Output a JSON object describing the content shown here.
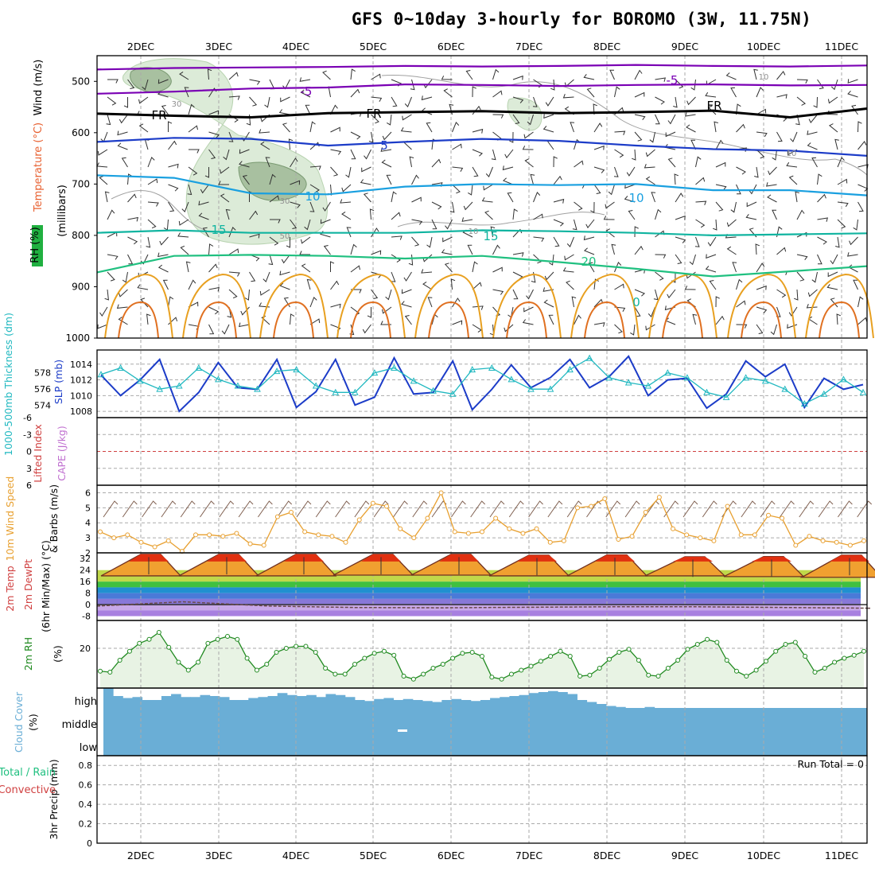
{
  "title": "GFS 0~10day 3-hourly for BOROMO (3W, 11.75N)",
  "colors": {
    "frame": "#000000",
    "grid": "#aaaaaa",
    "purple": "#7a00b4",
    "blue": "#1c3cc8",
    "lightblue": "#1aa0e0",
    "teal": "#10b4a0",
    "green": "#20c080",
    "orange": "#e8a020",
    "darkorange": "#e07020",
    "slp": "#1c3cc8",
    "thickness": "#20b8c0",
    "wind10m": "#e8a030",
    "rh2m": "#208a20",
    "rh2mfill": "#e8f3e4",
    "cloud": "#6aaed6",
    "cape_lifted": "#d04040",
    "cape_label": "#c070d0"
  },
  "chart_data": [
    {
      "panel": "upper-air",
      "type": "line",
      "x": [
        "2DEC",
        "3DEC",
        "4DEC",
        "5DEC",
        "6DEC",
        "7DEC",
        "8DEC",
        "9DEC",
        "10DEC",
        "11DEC"
      ],
      "ylabel": [
        "Wind (m/s)",
        "Temperature (°C)",
        "RH (%)",
        "(millibars)"
      ],
      "y_ticks": [
        "500",
        "600",
        "700",
        "800",
        "900",
        "1000"
      ],
      "ylim": [
        1000,
        445
      ],
      "series": [
        {
          "name": "-10",
          "color": "purple",
          "pressure": [
            477,
            474,
            473,
            472,
            470,
            471,
            470,
            468,
            470,
            471,
            469
          ]
        },
        {
          "name": "-5",
          "color": "purple",
          "pressure": [
            524,
            520,
            514,
            512,
            506,
            507,
            509,
            507,
            506,
            508,
            507
          ]
        },
        {
          "name": "FR",
          "color": "black",
          "pressure": [
            563,
            567,
            570,
            562,
            560,
            558,
            562,
            560,
            557,
            570,
            553
          ]
        },
        {
          "name": "5",
          "color": "blue",
          "pressure": [
            618,
            610,
            612,
            625,
            618,
            612,
            616,
            625,
            632,
            635,
            645
          ]
        },
        {
          "name": "10",
          "color": "lightblue",
          "pressure": [
            683,
            688,
            718,
            720,
            705,
            700,
            702,
            700,
            712,
            712,
            722
          ]
        },
        {
          "name": "15",
          "color": "teal",
          "pressure": [
            795,
            790,
            795,
            795,
            795,
            790,
            792,
            795,
            800,
            798,
            796
          ]
        },
        {
          "name": "20",
          "color": "green",
          "pressure": [
            872,
            840,
            838,
            840,
            845,
            840,
            852,
            865,
            880,
            870,
            860
          ]
        }
      ],
      "labels": [
        "-5",
        "-5",
        "FR",
        "FR",
        "FR",
        "5",
        "10",
        "10",
        "15",
        "15",
        "20",
        "0",
        "10",
        "10",
        "10",
        "30",
        "30",
        "50",
        "30"
      ]
    },
    {
      "panel": "slp-thickness",
      "type": "line",
      "ylabel_left": "1000-500mb Thickness (dm)",
      "ylabel_right": "SLP (mb)",
      "thickness_ticks": [
        "578",
        "576",
        "574"
      ],
      "slp_ticks": [
        "1014",
        "1012",
        "1010",
        "1008"
      ],
      "slp": [
        1012.6,
        1010.0,
        1012.0,
        1014.6,
        1008.0,
        1010.4,
        1014.2,
        1011.0,
        1010.8,
        1014.6,
        1008.5,
        1010.5,
        1014.6,
        1008.8,
        1009.8,
        1014.8,
        1010.2,
        1010.4,
        1014.4,
        1008.2,
        1010.8,
        1013.9,
        1011.0,
        1012.3,
        1014.6,
        1011.0,
        1012.4,
        1015.0,
        1010.0,
        1012.0,
        1012.2,
        1008.4,
        1010.2,
        1014.4,
        1012.4,
        1014.0,
        1008.5,
        1012.2,
        1010.8,
        1011.4
      ],
      "thickness": [
        577.8,
        578.6,
        577.0,
        576.0,
        576.4,
        578.6,
        577.2,
        576.4,
        576.0,
        578.2,
        578.4,
        576.4,
        575.6,
        575.6,
        578.0,
        578.6,
        577.0,
        575.8,
        575.4,
        578.4,
        578.6,
        577.2,
        576.0,
        576.0,
        578.4,
        579.8,
        577.4,
        576.8,
        576.4,
        578.0,
        577.4,
        575.6,
        575.0,
        577.4,
        577.0,
        576.0,
        574.2,
        575.4,
        577.2,
        575.6
      ]
    },
    {
      "panel": "cape-li",
      "type": "line",
      "ylabel": [
        "Lifted Index",
        "CAPE (J/kg)"
      ],
      "y_ticks": [
        "-6",
        "-3",
        "0",
        "3",
        "6"
      ],
      "ylim": [
        6,
        -6
      ],
      "lifted_index_zero_line": 0
    },
    {
      "panel": "wind10m",
      "type": "line",
      "ylabel": [
        "10m Wind Speed",
        "& Barbs (m/s)"
      ],
      "y_ticks": [
        "6",
        "5",
        "4",
        "3",
        "2"
      ],
      "ylim": [
        2,
        6.5
      ],
      "values": [
        3.4,
        3.0,
        3.2,
        2.7,
        2.4,
        2.8,
        2.1,
        3.2,
        3.2,
        3.1,
        3.3,
        2.6,
        2.5,
        4.4,
        4.7,
        3.4,
        3.2,
        3.1,
        2.7,
        4.2,
        5.3,
        5.1,
        3.6,
        3.0,
        4.3,
        6.0,
        3.4,
        3.3,
        3.4,
        4.3,
        3.6,
        3.3,
        3.6,
        2.7,
        2.8,
        5.0,
        5.1,
        5.6,
        2.9,
        3.1,
        4.7,
        5.7,
        3.6,
        3.2,
        3.0,
        2.8,
        5.1,
        3.2,
        3.2,
        4.5,
        4.3,
        2.5,
        3.1,
        2.8,
        2.7,
        2.5,
        2.8
      ]
    },
    {
      "panel": "temp2m",
      "type": "area",
      "ylabel": [
        "2m Temp",
        "2m DewPt",
        "(6hr Min/Max) (°C)"
      ],
      "y_ticks": [
        "32",
        "24",
        "16",
        "8",
        "0",
        "-8"
      ],
      "temp_max": [
        35.0,
        35.0,
        35.0,
        35.0,
        35.0,
        34.4,
        34.6,
        33.3,
        33.4,
        34.4
      ],
      "temp_min": [
        20.0,
        20.0,
        20.0,
        20.5,
        20.5,
        20.0,
        20.0,
        20.0,
        19.5,
        19.0
      ],
      "dewpoint": [
        -1.0,
        2.0,
        -1.0,
        -2.0,
        -2.2,
        -1.8,
        -1.5,
        -1.5,
        -2.0,
        -2.5
      ]
    },
    {
      "panel": "rh2m",
      "type": "area",
      "ylabel": [
        "2m RH",
        "(%)"
      ],
      "y_ticks": [
        "20"
      ],
      "values": [
        8.5,
        8.0,
        14.0,
        18.5,
        22.5,
        24.5,
        28.0,
        20.5,
        13.0,
        9.0,
        13.0,
        22.5,
        24.5,
        26.0,
        24.5,
        15.0,
        9.0,
        12.0,
        18.0,
        20.0,
        21.0,
        21.0,
        18.0,
        10.0,
        7.0,
        7.0,
        12.0,
        15.0,
        17.5,
        18.5,
        16.5,
        6.0,
        4.5,
        7.0,
        10.0,
        12.0,
        15.0,
        17.5,
        18.0,
        16.0,
        5.5,
        4.5,
        7.0,
        9.0,
        11.0,
        13.5,
        16.0,
        18.5,
        16.0,
        6.0,
        6.5,
        10.0,
        14.5,
        18.0,
        19.5,
        14.0,
        6.5,
        6.0,
        10.0,
        14.0,
        19.5,
        22.0,
        24.5,
        23.0,
        14.0,
        8.5,
        6.0,
        9.0,
        13.5,
        18.5,
        22.0,
        23.0,
        16.0,
        8.0,
        10.0,
        13.0,
        15.0,
        16.5,
        18.5
      ]
    },
    {
      "panel": "cloud",
      "type": "area",
      "ylabel": [
        "Cloud Cover",
        "(%)"
      ],
      "levels": [
        "high",
        "middle",
        "low"
      ],
      "high_cover": [
        100,
        60,
        50,
        55,
        40,
        40,
        60,
        70,
        55,
        55,
        65,
        60,
        55,
        40,
        40,
        50,
        55,
        60,
        75,
        65,
        60,
        65,
        55,
        70,
        65,
        55,
        40,
        35,
        45,
        50,
        40,
        45,
        40,
        35,
        30,
        40,
        45,
        40,
        35,
        40,
        50,
        55,
        60,
        65,
        75,
        80,
        85,
        80,
        70,
        40,
        30,
        20,
        10,
        5,
        0,
        0,
        5,
        0,
        0,
        0,
        0,
        0,
        0,
        0,
        0,
        0,
        0,
        0,
        0,
        0,
        0,
        0,
        0,
        0,
        0,
        0,
        0,
        0,
        0
      ]
    },
    {
      "panel": "precip",
      "type": "bar",
      "ylabel": [
        "3hr Precip (mm)"
      ],
      "legend": [
        "Total / Rain",
        "Convective"
      ],
      "y_ticks": [
        "0.8",
        "0.6",
        "0.4",
        "0.2",
        "0"
      ],
      "ylim": [
        0,
        0.9
      ],
      "run_total": "Run Total = 0"
    }
  ]
}
